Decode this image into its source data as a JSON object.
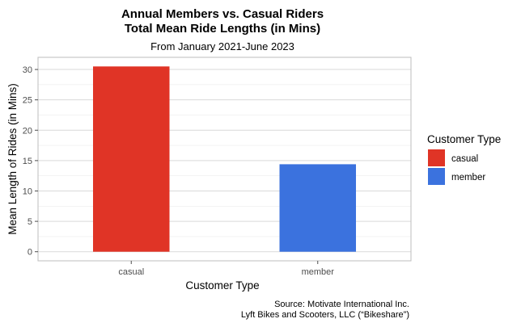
{
  "chart_data": {
    "type": "bar",
    "title_line1": "Annual Members vs. Casual Riders",
    "title_line2": "Total Mean Ride Lengths (in Mins)",
    "subtitle": "From January 2021-June 2023",
    "xlabel": "Customer Type",
    "ylabel": "Mean Length of Rides (in Mins)",
    "categories": [
      "casual",
      "member"
    ],
    "values": [
      30.5,
      14.4
    ],
    "colors": [
      "#E03426",
      "#3B72DE"
    ],
    "ylim": [
      -1.5,
      32
    ],
    "yticks": [
      0,
      5,
      10,
      15,
      20,
      25,
      30
    ],
    "grid": true,
    "background": "#ffffff",
    "gridColor": "#d9d9d9",
    "legend": {
      "title": "Customer Type",
      "position": "right",
      "items": [
        {
          "label": "casual",
          "color": "#E03426"
        },
        {
          "label": "member",
          "color": "#3B72DE"
        }
      ]
    },
    "caption_line1": "Source: Motivate International Inc.",
    "caption_line2": "Lyft Bikes and Scooters, LLC (“Bikeshare”)"
  }
}
